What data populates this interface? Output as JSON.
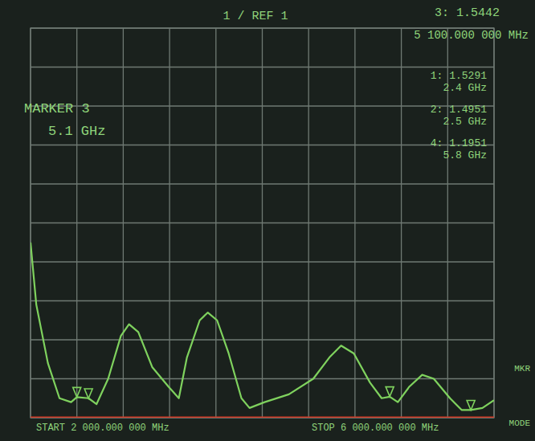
{
  "chart_data": {
    "type": "line",
    "header": "1 / REF 1",
    "color": "#7fd25e",
    "x": [
      2000,
      2050,
      2150,
      2250,
      2350,
      2400,
      2500,
      2570,
      2670,
      2780,
      2850,
      2930,
      3050,
      3190,
      3280,
      3350,
      3460,
      3530,
      3610,
      3710,
      3820,
      3890,
      4020,
      4230,
      4440,
      4580,
      4680,
      4790,
      4930,
      5030,
      5100,
      5170,
      5270,
      5380,
      5480,
      5620,
      5720,
      5800,
      5900,
      6000
    ],
    "values": [
      5.5,
      3.9,
      2.4,
      1.5,
      1.4,
      1.53,
      1.5,
      1.35,
      2.0,
      3.1,
      3.4,
      3.2,
      2.3,
      1.8,
      1.5,
      2.55,
      3.5,
      3.7,
      3.5,
      2.65,
      1.5,
      1.25,
      1.4,
      1.6,
      2.0,
      2.55,
      2.85,
      2.65,
      1.9,
      1.5,
      1.54,
      1.4,
      1.8,
      2.1,
      2.0,
      1.5,
      1.2,
      1.2,
      1.25,
      1.45
    ],
    "xlim": [
      2000,
      6000
    ],
    "ylim": [
      1,
      11
    ],
    "xticks": [
      2000,
      2400,
      2800,
      3200,
      3600,
      4000,
      4400,
      4800,
      5200,
      5600,
      6000
    ],
    "yticks": [
      1,
      2,
      3,
      4,
      5,
      6,
      7,
      8,
      9,
      10,
      11
    ],
    "grid": true,
    "tick_labels": false,
    "ref_line": 1,
    "markers": [
      {
        "readout": "1: 1.5291",
        "value": 1.5291,
        "freq": "2.4 GHz",
        "x": 2400
      },
      {
        "readout": "2: 1.4951",
        "value": 1.4951,
        "freq": "2.5 GHz",
        "x": 2500
      },
      {
        "readout": "3: 1.5442",
        "value": 1.5442,
        "freq": "5 100.000 000 MHz",
        "x": 5100
      },
      {
        "readout": "4: 1.1951",
        "value": 1.1951,
        "freq": "5.8 GHz",
        "x": 5800
      }
    ],
    "active_marker": {
      "title": "MARKER 3",
      "freq": "5.1 GHz"
    },
    "start_label": "START 2 000.000 000 MHz",
    "stop_label": "STOP 6 000.000 000 MHz",
    "softkeys": [
      "MKR",
      "MODE"
    ]
  }
}
